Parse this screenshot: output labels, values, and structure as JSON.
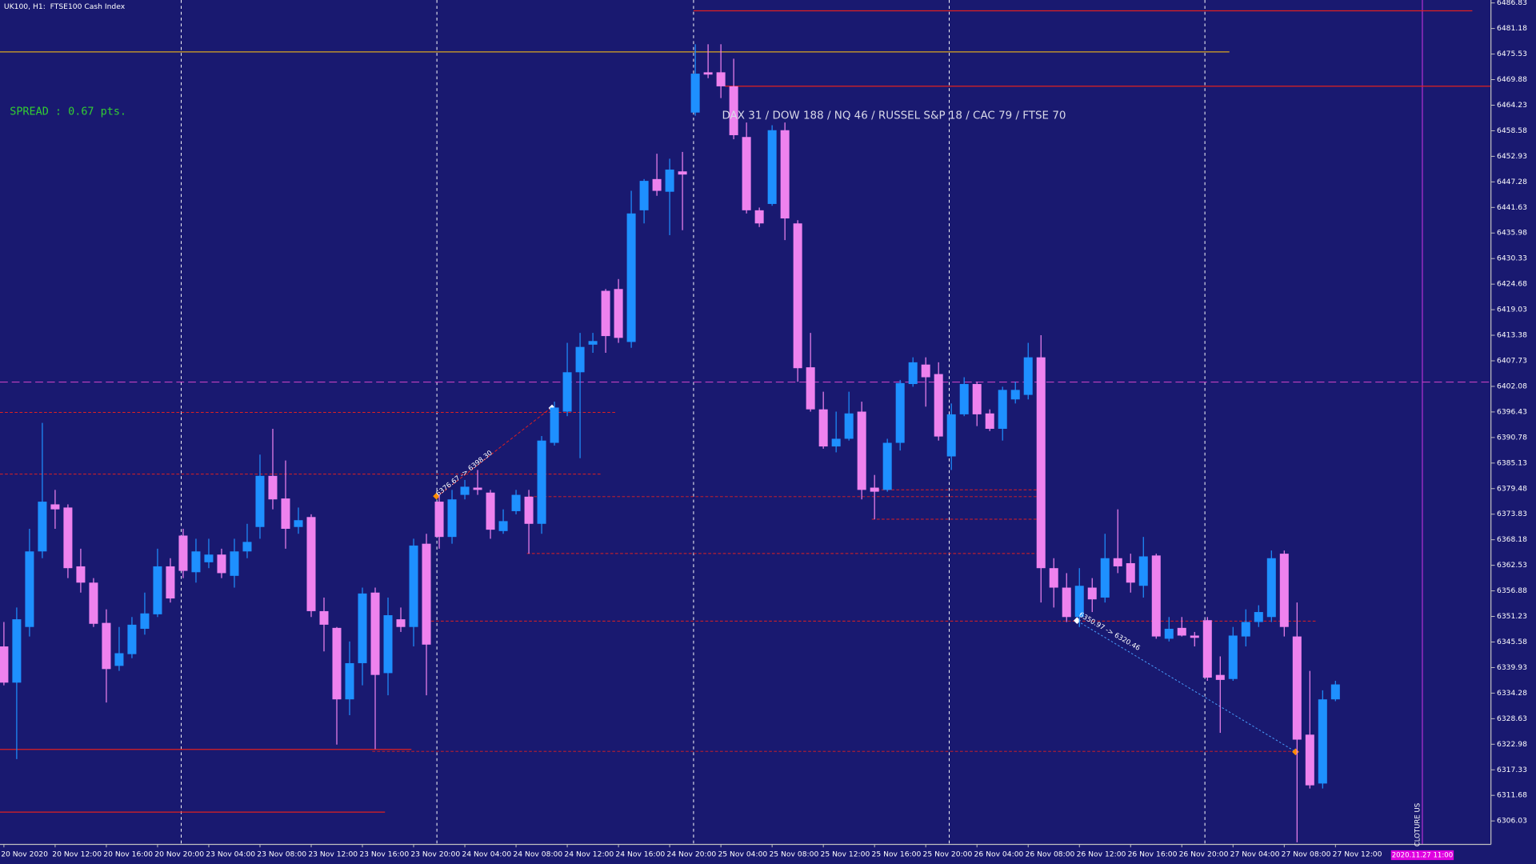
{
  "chart_data": {
    "type": "candlestick",
    "title": "UK100, H1:  FTSE100 Cash Index",
    "annotations": [
      "SPREAD : 0.67 pts.",
      "DAX 31 / DOW 188 / NQ 46 / RUSSEL S&P 18 / CAC 79 / FTSE 70",
      "CLOTURE US",
      "2020.11.27 11:00",
      "6376.67 -> 6398.30",
      "6350.97 -> 6320.46"
    ],
    "up_color": "#1e90ff",
    "down_color": "#ee82ee",
    "categories": [
      "20 Nov 2020",
      null,
      null,
      null,
      "20 Nov 12:00",
      null,
      null,
      null,
      "20 Nov 16:00",
      null,
      null,
      null,
      "20 Nov 20:00",
      null,
      null,
      null,
      "23 Nov 04:00",
      null,
      null,
      null,
      "23 Nov 08:00",
      null,
      null,
      null,
      "23 Nov 12:00",
      null,
      null,
      null,
      "23 Nov 16:00",
      null,
      null,
      null,
      "23 Nov 20:00",
      null,
      null,
      null,
      "24 Nov 04:00",
      null,
      null,
      null,
      "24 Nov 08:00",
      null,
      null,
      null,
      "24 Nov 12:00",
      null,
      null,
      null,
      "24 Nov 16:00",
      null,
      null,
      null,
      "24 Nov 20:00",
      null,
      null,
      null,
      "25 Nov 04:00",
      null,
      null,
      null,
      "25 Nov 08:00",
      null,
      null,
      null,
      "25 Nov 12:00",
      null,
      null,
      null,
      "25 Nov 16:00",
      null,
      null,
      null,
      "25 Nov 20:00",
      null,
      null,
      null,
      "26 Nov 04:00",
      null,
      null,
      null,
      "26 Nov 08:00",
      null,
      null,
      null,
      "26 Nov 12:00",
      null,
      null,
      null,
      "26 Nov 16:00",
      null,
      null,
      null,
      "26 Nov 20:00",
      null,
      null,
      null,
      "27 Nov 04:00",
      null,
      null,
      null,
      "27 Nov 08:00",
      null,
      null,
      null,
      "27 Nov 12:00"
    ],
    "open": [
      6344.6,
      6336.6,
      6348.9,
      6365.6,
      6376.0,
      6375.3,
      6362.3,
      6358.7,
      6349.8,
      6340.3,
      6342.9,
      6348.5,
      6351.7,
      6362.3,
      6369.1,
      6361.0,
      6363.2,
      6364.9,
      6360.2,
      6365.6,
      6371.0,
      6382.3,
      6377.3,
      6371.0,
      6373.2,
      6352.4,
      6348.7,
      6332.9,
      6340.9,
      6356.5,
      6338.7,
      6350.6,
      6348.9,
      6367.3,
      6376.6,
      6368.8,
      6378.1,
      6379.7,
      6378.6,
      6370.1,
      6374.5,
      6377.7,
      6371.7,
      6389.6,
      6396.5,
      6405.2,
      6411.3,
      6423.2,
      6423.6,
      6411.9,
      6441.0,
      6447.9,
      6445.1,
      6449.6,
      6462.6,
      6471.5,
      6471.5,
      6468.4,
      6457.2,
      6441.0,
      6442.4,
      6458.7,
      6438.1,
      6406.3,
      6397.0,
      6388.8,
      6390.5,
      6396.5,
      6379.7,
      6379.2,
      6389.6,
      6402.6,
      6406.9,
      6404.8,
      6386.6,
      6395.9,
      6402.6,
      6396.1,
      6392.7,
      6399.2,
      6400.2,
      6408.5,
      6361.9,
      6357.6,
      6351.1,
      6357.6,
      6355.4,
      6364.1,
      6363.0,
      6358.0,
      6364.7,
      6346.3,
      6348.7,
      6347.0,
      6350.4,
      6338.3,
      6337.4,
      6346.8,
      6350.0,
      6351.1,
      6365.1,
      6346.8,
      6325.1,
      6314.3,
      6332.9
    ],
    "high": [
      6350.0,
      6353.2,
      6370.6,
      6394.0,
      6379.2,
      6376.0,
      6366.2,
      6359.7,
      6352.8,
      6348.9,
      6351.1,
      6356.5,
      6366.2,
      6364.1,
      6370.6,
      6368.4,
      6368.4,
      6366.2,
      6368.4,
      6371.7,
      6387.0,
      6392.7,
      6385.7,
      6375.3,
      6373.8,
      6355.4,
      6348.9,
      6345.7,
      6357.6,
      6357.6,
      6355.4,
      6353.2,
      6368.4,
      6369.5,
      6378.1,
      6379.2,
      6381.4,
      6383.6,
      6379.2,
      6374.9,
      6379.2,
      6379.2,
      6391.1,
      6398.7,
      6411.7,
      6413.9,
      6413.9,
      6423.6,
      6425.8,
      6445.3,
      6447.9,
      6453.5,
      6452.4,
      6453.9,
      6477.7,
      6477.7,
      6477.7,
      6474.5,
      6460.4,
      6441.6,
      6459.8,
      6460.4,
      6438.8,
      6413.9,
      6400.9,
      6396.5,
      6400.9,
      6398.7,
      6382.5,
      6390.5,
      6403.5,
      6408.5,
      6408.5,
      6407.4,
      6398.3,
      6404.1,
      6403.1,
      6397.0,
      6402.0,
      6403.1,
      6411.7,
      6413.4,
      6364.1,
      6360.8,
      6361.9,
      6359.7,
      6369.5,
      6374.9,
      6365.1,
      6368.8,
      6365.1,
      6351.1,
      6351.1,
      6347.8,
      6351.1,
      6342.4,
      6348.9,
      6352.8,
      6353.7,
      6365.8,
      6365.8,
      6354.3,
      6339.2,
      6334.9,
      6337.0
    ],
    "low": [
      6336.0,
      6319.7,
      6346.8,
      6364.1,
      6370.6,
      6359.7,
      6356.5,
      6348.9,
      6332.2,
      6339.2,
      6342.0,
      6347.2,
      6351.1,
      6354.3,
      6359.7,
      6358.7,
      6361.9,
      6359.7,
      6357.6,
      6364.1,
      6368.4,
      6374.9,
      6366.2,
      6369.5,
      6351.1,
      6343.5,
      6322.9,
      6329.4,
      6336.0,
      6321.9,
      6333.8,
      6347.8,
      6344.6,
      6333.8,
      6366.2,
      6367.3,
      6377.1,
      6378.1,
      6368.4,
      6369.5,
      6373.8,
      6365.1,
      6369.5,
      6389.0,
      6395.5,
      6386.2,
      6409.5,
      6409.5,
      6411.7,
      6410.6,
      6438.1,
      6444.2,
      6435.5,
      6436.6,
      6461.9,
      6470.2,
      6465.8,
      6456.7,
      6440.3,
      6437.3,
      6442.0,
      6434.4,
      6403.1,
      6396.5,
      6388.3,
      6387.5,
      6390.1,
      6377.1,
      6372.7,
      6378.8,
      6387.9,
      6402.0,
      6397.6,
      6390.1,
      6383.6,
      6395.5,
      6393.3,
      6392.2,
      6390.1,
      6398.3,
      6399.2,
      6354.3,
      6353.2,
      6350.0,
      6348.9,
      6352.2,
      6354.3,
      6360.8,
      6356.5,
      6355.4,
      6346.3,
      6345.7,
      6346.8,
      6344.6,
      6337.0,
      6325.5,
      6337.0,
      6344.6,
      6348.9,
      6350.0,
      6346.8,
      6301.3,
      6313.2,
      6313.2,
      6332.5
    ],
    "close": [
      6336.6,
      6350.6,
      6365.6,
      6376.6,
      6374.9,
      6361.9,
      6358.7,
      6349.6,
      6339.6,
      6343.1,
      6349.4,
      6351.9,
      6362.3,
      6355.2,
      6361.3,
      6365.6,
      6364.9,
      6360.8,
      6365.6,
      6367.7,
      6382.3,
      6377.1,
      6370.6,
      6372.5,
      6352.4,
      6349.4,
      6332.9,
      6340.9,
      6356.3,
      6338.3,
      6351.5,
      6348.9,
      6366.9,
      6345.0,
      6368.8,
      6377.1,
      6379.9,
      6379.2,
      6370.4,
      6372.3,
      6378.1,
      6371.7,
      6390.1,
      6397.4,
      6405.2,
      6410.8,
      6412.1,
      6413.2,
      6412.8,
      6440.3,
      6447.5,
      6445.3,
      6450.0,
      6448.9,
      6471.2,
      6471.0,
      6468.4,
      6457.6,
      6441.0,
      6438.1,
      6458.7,
      6439.2,
      6406.1,
      6397.0,
      6388.8,
      6390.5,
      6396.1,
      6379.2,
      6378.8,
      6389.6,
      6402.8,
      6407.4,
      6404.1,
      6391.0,
      6395.9,
      6402.6,
      6395.9,
      6392.7,
      6401.3,
      6401.3,
      6408.5,
      6361.9,
      6357.6,
      6351.1,
      6358.0,
      6355.0,
      6364.1,
      6362.3,
      6358.7,
      6364.5,
      6346.8,
      6348.5,
      6347.0,
      6346.5,
      6337.7,
      6337.2,
      6347.0,
      6350.0,
      6352.2,
      6364.1,
      6348.9,
      6324.0,
      6313.9,
      6332.9,
      6336.2
    ],
    "ylim": [
      6300.84,
      6487.48
    ],
    "yticks": [
      6306.03,
      6311.68,
      6317.33,
      6322.98,
      6328.63,
      6334.28,
      6339.93,
      6345.58,
      6351.23,
      6356.88,
      6362.53,
      6368.18,
      6373.83,
      6379.48,
      6385.13,
      6390.78,
      6396.43,
      6402.08,
      6407.73,
      6413.38,
      6419.03,
      6424.68,
      6430.33,
      6435.98,
      6441.63,
      6447.28,
      6452.93,
      6458.58,
      6464.23,
      6469.88,
      6475.53,
      6481.18,
      6486.83
    ],
    "grid": false
  }
}
